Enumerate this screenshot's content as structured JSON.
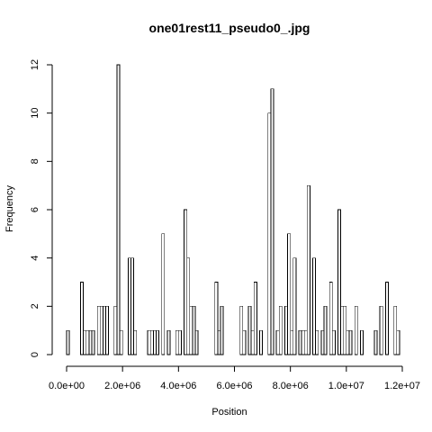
{
  "chart_data": {
    "type": "bar",
    "title": "one01rest11_pseudo0_.jpg",
    "xlabel": "Position",
    "ylabel": "Frequency",
    "xlim": [
      0,
      12000000
    ],
    "ylim": [
      0,
      12
    ],
    "x_ticks": [
      0,
      2000000,
      4000000,
      6000000,
      8000000,
      10000000,
      12000000
    ],
    "x_tick_labels": [
      "0.0e+00",
      "2.0e+06",
      "4.0e+06",
      "6.0e+06",
      "8.0e+06",
      "1.0e+07",
      "1.2e+07"
    ],
    "y_ticks": [
      0,
      2,
      4,
      6,
      8,
      10,
      12
    ],
    "y_tick_labels": [
      "0",
      "2",
      "4",
      "6",
      "8",
      "10",
      "12"
    ],
    "bin_width": 100000,
    "bin_start": 0,
    "counts": [
      1,
      0,
      0,
      0,
      0,
      3,
      1,
      1,
      1,
      1,
      0,
      2,
      2,
      2,
      2,
      0,
      0,
      2,
      12,
      1,
      0,
      0,
      4,
      4,
      1,
      0,
      0,
      0,
      0,
      1,
      1,
      1,
      1,
      0,
      5,
      0,
      1,
      0,
      0,
      1,
      1,
      0,
      6,
      4,
      2,
      2,
      1,
      0,
      0,
      0,
      0,
      0,
      0,
      3,
      1,
      2,
      0,
      0,
      0,
      0,
      0,
      0,
      2,
      1,
      0,
      2,
      1,
      3,
      0,
      1,
      0,
      0,
      10,
      11,
      0,
      1,
      2,
      0,
      2,
      5,
      1,
      4,
      0,
      1,
      1,
      1,
      7,
      0,
      4,
      1,
      0,
      1,
      2,
      0,
      3,
      1,
      0,
      6,
      2,
      2,
      1,
      1,
      0,
      2,
      0,
      1,
      0,
      0,
      0,
      0,
      1,
      0,
      2,
      0,
      3,
      0,
      0,
      2,
      1,
      0,
      0,
      0,
      0,
      0,
      0,
      0,
      0,
      0,
      0,
      0
    ],
    "grid": false,
    "legend": "none"
  }
}
